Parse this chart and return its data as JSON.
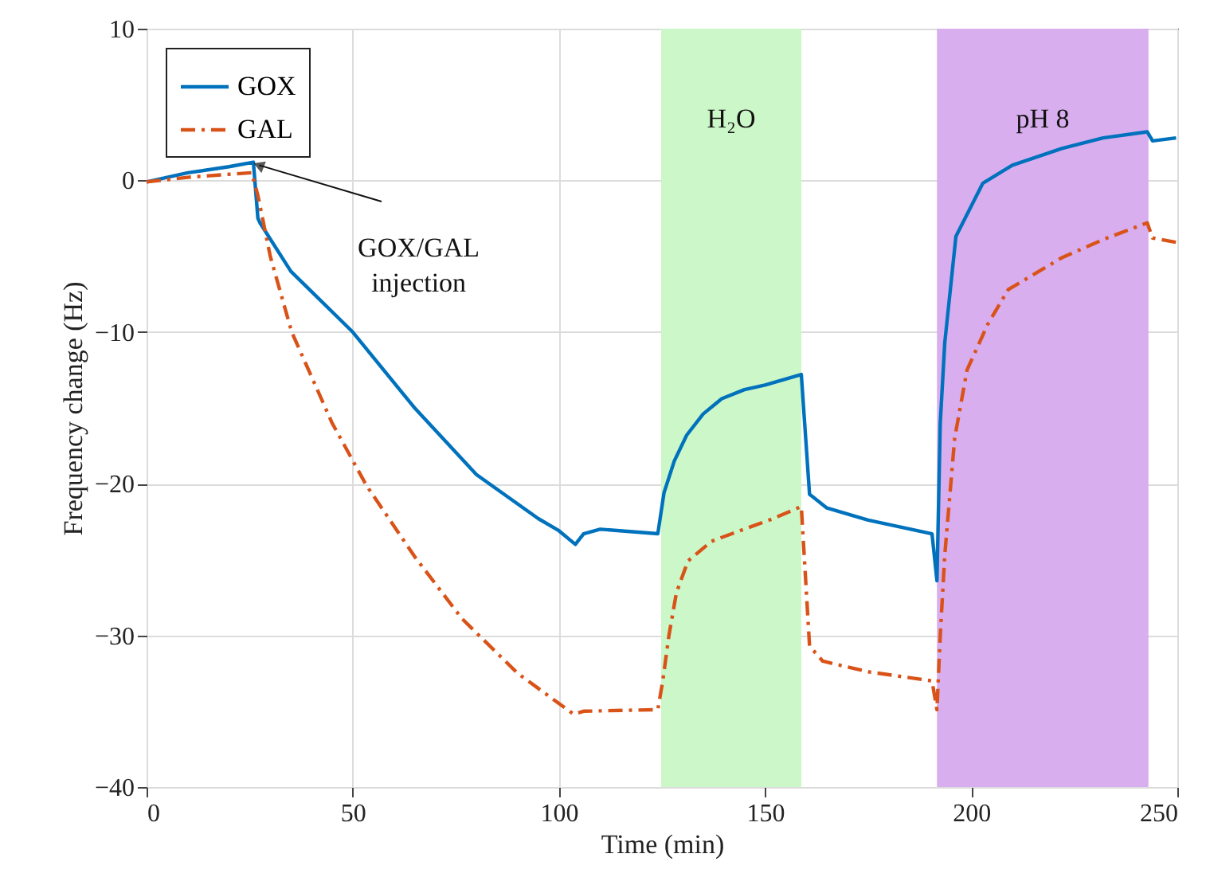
{
  "chart_data": {
    "type": "line",
    "xlabel": "Time (min)",
    "ylabel": "Frequency change (Hz)",
    "xlim": [
      0,
      250
    ],
    "xticks": [
      0,
      50,
      100,
      150,
      200,
      250
    ],
    "ylim": [
      -40,
      10
    ],
    "yticks": [
      -40,
      -30,
      -20,
      -10,
      0,
      10
    ],
    "grid": true,
    "legend": "top left",
    "series": [
      {
        "name": "GOX",
        "color": "#0072bd",
        "line_style": "solid",
        "x": [
          0,
          10,
          20,
          25.9,
          27,
          27.5,
          35,
          50,
          65,
          80,
          95,
          100,
          104,
          106,
          110,
          124,
          125.5,
          128,
          131,
          135,
          139.5,
          145,
          150,
          158.8,
          160.8,
          165,
          175,
          190.5,
          191.7,
          192.5,
          193.6,
          196.3,
          202.8,
          210,
          222,
          232,
          242.7,
          244,
          249.7
        ],
        "values": [
          -0.1,
          0.5,
          0.9,
          1.2,
          -2.5,
          -2.8,
          -6,
          -10,
          -15,
          -19.4,
          -22.3,
          -23.1,
          -24,
          -23.3,
          -23,
          -23.3,
          -20.6,
          -18.5,
          -16.8,
          -15.4,
          -14.4,
          -13.8,
          -13.5,
          -12.8,
          -20.7,
          -21.6,
          -22.4,
          -23.3,
          -26.4,
          -16,
          -10.7,
          -3.7,
          -0.2,
          1,
          2.1,
          2.8,
          3.2,
          2.6,
          2.8
        ]
      },
      {
        "name": "GAL",
        "color": "#d95319",
        "line_style": "dashdot",
        "x": [
          0,
          10,
          20,
          25.5,
          27,
          30,
          35.2,
          45,
          53.3,
          65,
          76.5,
          90,
          103.6,
          106,
          124,
          125.2,
          126.7,
          128.5,
          131.3,
          137,
          144.9,
          152,
          158.8,
          160.8,
          164,
          175,
          190.5,
          191.7,
          192.5,
          193.6,
          196,
          199,
          204,
          209,
          222,
          232,
          242.7,
          244,
          250
        ],
        "values": [
          -0.1,
          0.2,
          0.4,
          0.5,
          -1,
          -5,
          -10,
          -16,
          -20.1,
          -24.8,
          -28.9,
          -32.5,
          -35.2,
          -35,
          -34.9,
          -33,
          -30,
          -27.2,
          -25.1,
          -23.8,
          -23,
          -22.3,
          -21.5,
          -30.7,
          -31.7,
          -32.4,
          -33,
          -34.9,
          -30,
          -24.7,
          -17,
          -12.5,
          -9.5,
          -7.2,
          -5.1,
          -3.9,
          -2.8,
          -3.8,
          -4.1
        ]
      }
    ],
    "bands": [
      {
        "axis": "x",
        "from": 124.8,
        "to": 158.8,
        "label": "H₂O",
        "color": "#ccf7c8"
      },
      {
        "axis": "x",
        "from": 191.7,
        "to": 243,
        "label": "pH 8",
        "color": "#d8aeee"
      }
    ],
    "annotations": [
      {
        "text": "GOX/GAL injection",
        "x": 26,
        "y": 1
      }
    ]
  }
}
